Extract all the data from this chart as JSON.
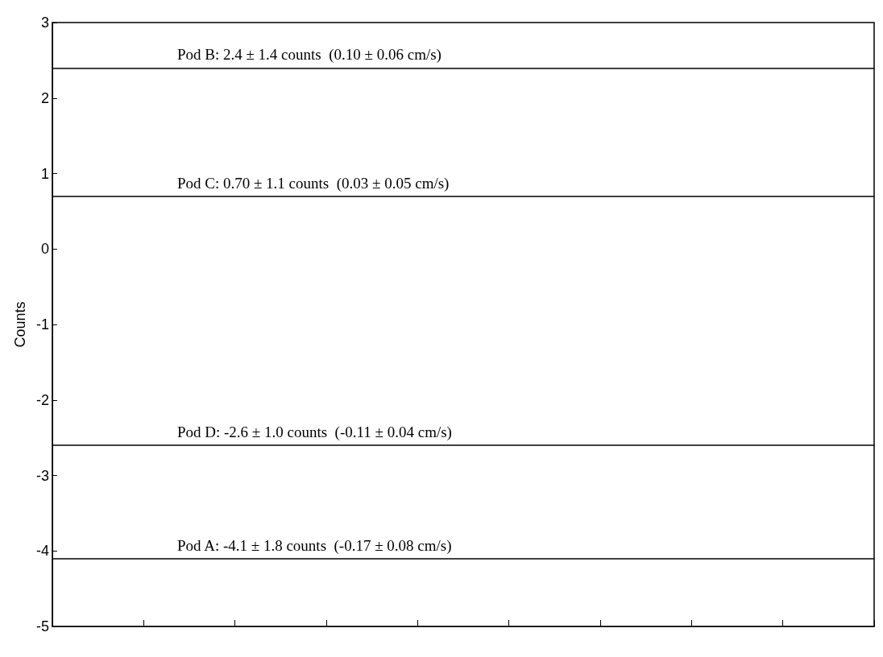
{
  "chart_data": {
    "type": "line",
    "ylabel": "Counts",
    "ylim": [
      -5,
      3
    ],
    "yticks": [
      -5,
      -4,
      -3,
      -2,
      -1,
      0,
      1,
      2,
      3
    ],
    "categories": [
      null,
      null,
      null,
      null,
      null,
      null,
      null,
      null,
      null
    ],
    "tick_labels": "y",
    "grid": false,
    "ref_lines": [
      {
        "axis": "y",
        "value": 2.4,
        "label": "Pod B: 2.4 ± 1.4 counts  (0.10 ± 0.06 cm/s)",
        "color": "#000000"
      },
      {
        "axis": "y",
        "value": 0.7,
        "label": "Pod C: 0.70 ± 1.1 counts  (0.03 ± 0.05 cm/s)",
        "color": "#000000"
      },
      {
        "axis": "y",
        "value": -2.6,
        "label": "Pod D: -2.6 ± 1.0 counts  (-0.11 ± 0.04 cm/s)",
        "color": "#000000"
      },
      {
        "axis": "y",
        "value": -4.1,
        "label": "Pod A: -4.1 ± 1.8 counts  (-0.17 ± 0.08 cm/s)",
        "color": "#000000"
      }
    ]
  }
}
